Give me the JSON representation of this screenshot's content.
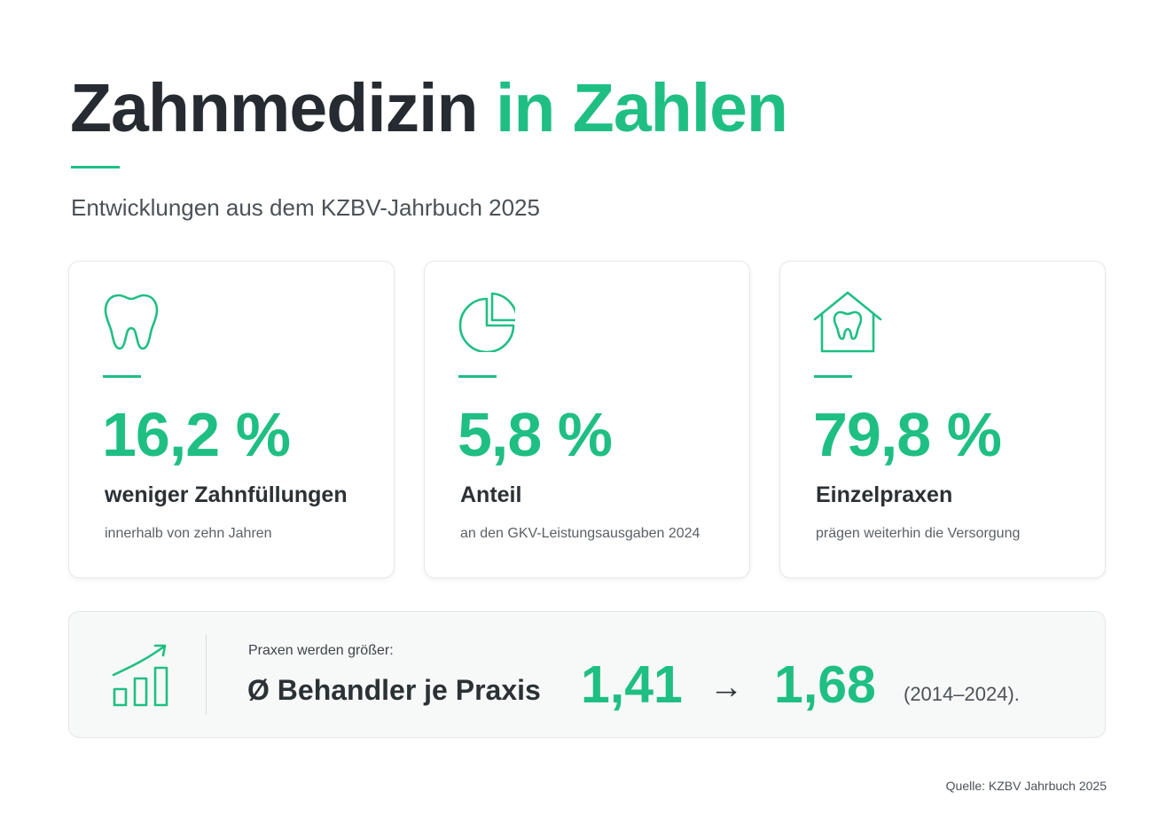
{
  "header": {
    "title_main": "Zahnmedizin",
    "title_accent": "in Zahlen",
    "subtitle": "Entwicklungen aus dem KZBV-Jahrbuch 2025"
  },
  "cards": [
    {
      "icon": "tooth-icon",
      "value": "16,2 %",
      "label": "weniger Zahnfüllungen",
      "sub": "innerhalb von zehn Jahren"
    },
    {
      "icon": "pie-chart-icon",
      "value": "5,8 %",
      "label": "Anteil",
      "sub": "an den GKV-Leistungsausgaben 2024"
    },
    {
      "icon": "house-tooth-icon",
      "value": "79,8 %",
      "label": "Einzelpraxen",
      "sub": "prägen weiterhin die Versorgung"
    }
  ],
  "bottom": {
    "icon": "growth-chart-icon",
    "kicker": "Praxen werden größer:",
    "label": "Ø Behandler je Praxis",
    "from_value": "1,41",
    "arrow": "→",
    "to_value": "1,68",
    "years": "(2014–2024)."
  },
  "footer": {
    "source": "Quelle: KZBV Jahrbuch 2025"
  },
  "colors": {
    "accent": "#1fbf84",
    "text_dark": "#252b31"
  }
}
